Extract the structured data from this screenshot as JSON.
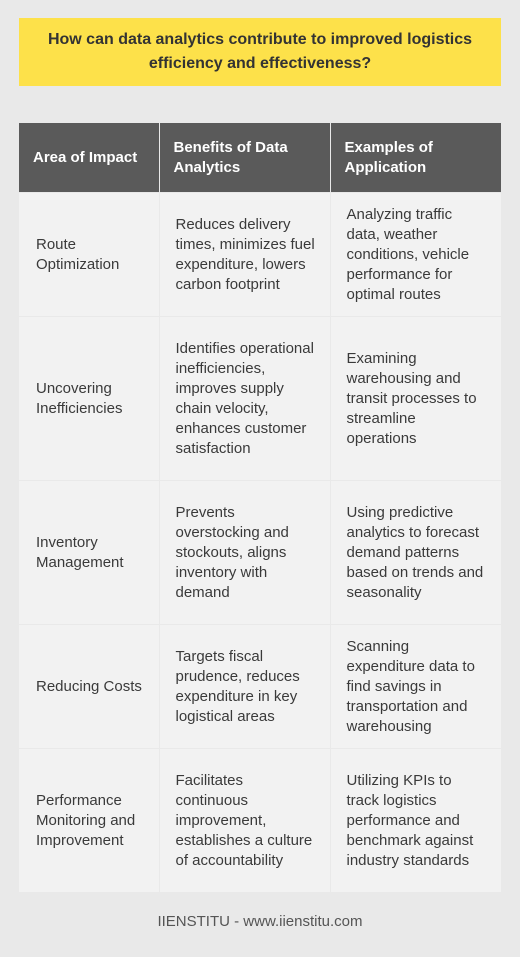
{
  "title": "How can data analytics contribute to improved logistics efficiency and effectiveness?",
  "table": {
    "headers": [
      "Area of Impact",
      "Benefits of Data Analytics",
      "Examples of Application"
    ],
    "rows": [
      [
        "Route Optimization",
        "Reduces delivery times, minimizes fuel expenditure, lowers carbon footprint",
        "Analyzing traffic data, weather conditions, vehicle performance for optimal routes"
      ],
      [
        "Uncovering Inefficiencies",
        "Identifies operational inefficiencies, improves supply chain velocity, enhances customer satisfaction",
        "Examining warehousing and transit processes to streamline operations"
      ],
      [
        "Inventory Management",
        "Prevents overstocking and stockouts, aligns inventory with demand",
        "Using predictive analytics to forecast demand patterns based on trends and seasonality"
      ],
      [
        "Reducing Costs",
        "Targets fiscal prudence, reduces expenditure in key logistical areas",
        "Scanning expenditure data to find savings in transportation and warehousing"
      ],
      [
        "Performance Monitoring and Improvement",
        "Facilitates continuous improvement, establishes a culture of accountability",
        "Utilizing KPIs to track logistics performance and benchmark against industry standards"
      ]
    ]
  },
  "footer": "IIENSTITU - www.iienstitu.com",
  "colors": {
    "banner": "#fde14a",
    "header": "#5a5a5a",
    "cell": "#f2f2f2",
    "background": "#e9e9e9"
  }
}
